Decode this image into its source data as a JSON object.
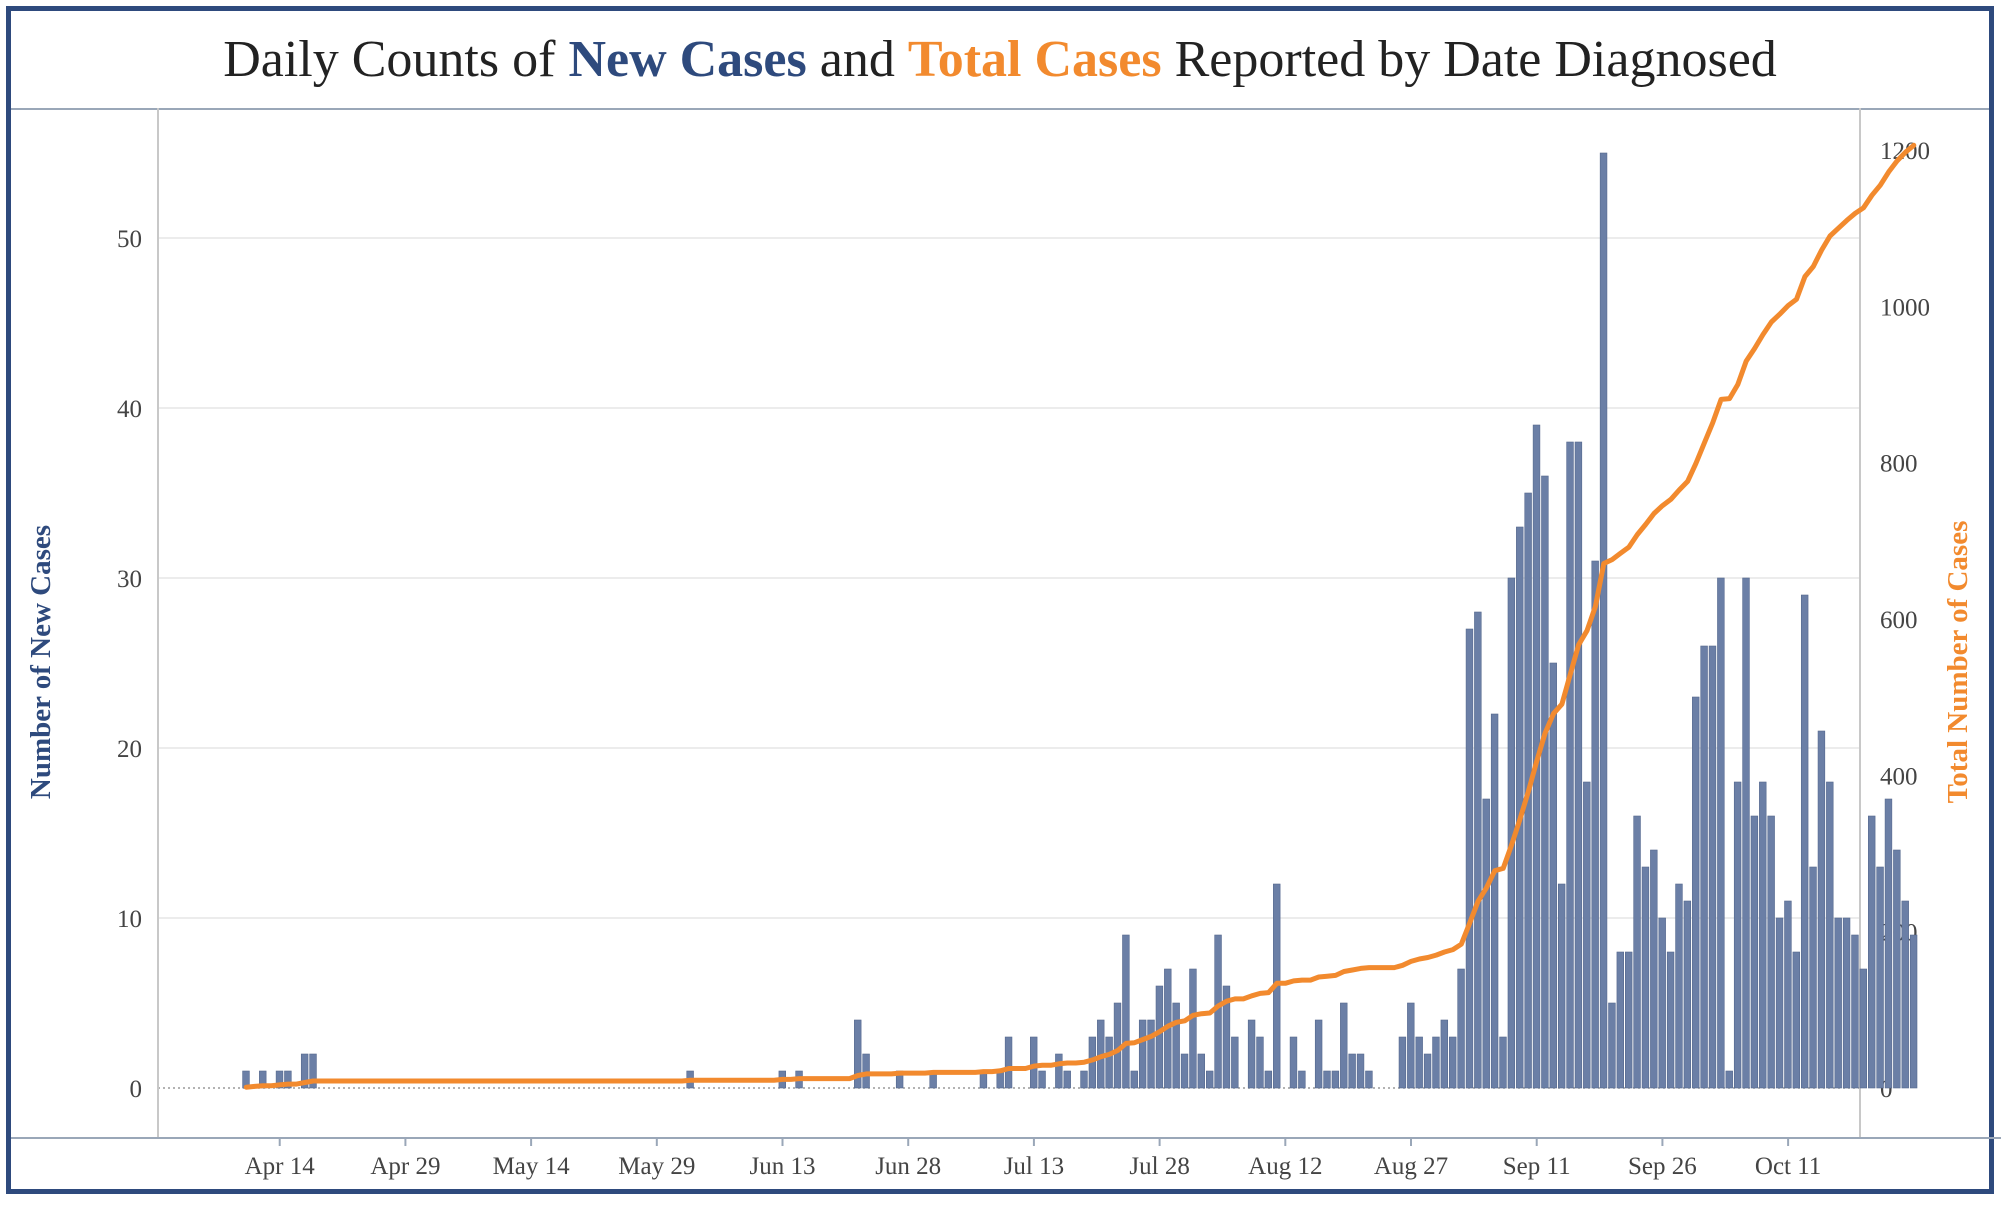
{
  "title": {
    "part1": "Daily Counts of ",
    "part2": "New Cases",
    "part3": " and ",
    "part4": "Total Cases",
    "part5": " Reported by Date Diagnosed"
  },
  "colors": {
    "new_cases": "#6b7fa6",
    "new_cases_title": "#2e4a7d",
    "total_cases": "#f28a2e",
    "frame": "#2e4a7d"
  },
  "chart_data": {
    "type": "bar+line",
    "x_start_date": "Apr 10",
    "x_tick_labels": [
      "Apr 14",
      "Apr 29",
      "May 14",
      "May 29",
      "Jun 13",
      "Jun 28",
      "Jul 13",
      "Jul 28",
      "Aug 12",
      "Aug 27",
      "Sep 11",
      "Sep 26",
      "Oct 11"
    ],
    "ylabel_left": "Number of New Cases",
    "ylabel_right": "Total Number of Cases",
    "ylim_left": [
      0,
      56
    ],
    "yticks_left": [
      0,
      10,
      20,
      30,
      40,
      50
    ],
    "ylim_right": [
      0,
      1220
    ],
    "yticks_right": [
      0,
      200,
      400,
      600,
      800,
      1000,
      1200
    ],
    "grid": true,
    "series": [
      {
        "name": "New Cases",
        "type": "bar",
        "values": [
          1,
          0,
          1,
          0,
          1,
          1,
          0,
          2,
          2,
          0,
          0,
          0,
          0,
          0,
          0,
          0,
          0,
          0,
          0,
          0,
          0,
          0,
          0,
          0,
          0,
          0,
          0,
          0,
          0,
          0,
          0,
          0,
          0,
          0,
          0,
          0,
          0,
          0,
          0,
          0,
          0,
          0,
          0,
          0,
          0,
          0,
          0,
          0,
          0,
          0,
          0,
          0,
          0,
          1,
          0,
          0,
          0,
          0,
          0,
          0,
          0,
          0,
          0,
          0,
          1,
          0,
          1,
          0,
          0,
          0,
          0,
          0,
          0,
          4,
          2,
          0,
          0,
          0,
          1,
          0,
          0,
          0,
          1,
          0,
          0,
          0,
          0,
          0,
          1,
          0,
          1,
          3,
          0,
          0,
          3,
          1,
          0,
          2,
          1,
          0,
          1,
          3,
          4,
          3,
          5,
          9,
          1,
          4,
          4,
          6,
          7,
          5,
          2,
          7,
          2,
          1,
          9,
          6,
          3,
          0,
          4,
          3,
          1,
          12,
          0,
          3,
          1,
          0,
          4,
          1,
          1,
          5,
          2,
          2,
          1,
          0,
          0,
          0,
          3,
          5,
          3,
          2,
          3,
          4,
          3,
          7,
          27,
          28,
          17,
          22,
          3,
          30,
          33,
          35,
          39,
          36,
          25,
          12,
          38,
          38,
          18,
          31,
          55,
          5,
          8,
          8,
          16,
          13,
          14,
          10,
          8,
          12,
          11,
          23,
          26,
          26,
          30,
          1,
          18,
          30,
          16,
          18,
          16,
          10,
          11,
          8,
          29,
          13,
          21,
          18,
          10,
          10,
          9,
          7,
          16,
          13,
          17,
          14,
          11,
          9
        ]
      },
      {
        "name": "Total Cases",
        "type": "line",
        "values": [
          1,
          2,
          3,
          3,
          4,
          5,
          5,
          7,
          9,
          9,
          9,
          9,
          9,
          9,
          9,
          9,
          9,
          9,
          9,
          9,
          9,
          9,
          9,
          9,
          9,
          9,
          9,
          9,
          9,
          9,
          9,
          9,
          9,
          9,
          9,
          9,
          9,
          9,
          9,
          9,
          9,
          9,
          9,
          9,
          9,
          9,
          9,
          9,
          9,
          9,
          9,
          9,
          9,
          10,
          10,
          10,
          10,
          10,
          10,
          10,
          10,
          10,
          10,
          10,
          11,
          11,
          12,
          12,
          12,
          12,
          12,
          12,
          12,
          16,
          18,
          18,
          18,
          18,
          19,
          19,
          19,
          19,
          20,
          20,
          20,
          20,
          20,
          20,
          21,
          21,
          22,
          25,
          25,
          25,
          28,
          29,
          29,
          31,
          32,
          32,
          33,
          36,
          40,
          43,
          48,
          57,
          58,
          62,
          66,
          72,
          79,
          84,
          86,
          93,
          95,
          96,
          105,
          111,
          114,
          114,
          118,
          121,
          122,
          134,
          134,
          137,
          138,
          138,
          142,
          143,
          144,
          149,
          151,
          153,
          154,
          154,
          154,
          154,
          157,
          162,
          165,
          167,
          170,
          174,
          177,
          184,
          211,
          239,
          256,
          278,
          281,
          311,
          344,
          379,
          418,
          454,
          479,
          491,
          529,
          567,
          585,
          616,
          671,
          676,
          684,
          692,
          708,
          721,
          735,
          745,
          753,
          765,
          776,
          799,
          825,
          851,
          881,
          882,
          900,
          930,
          946,
          964,
          980,
          990,
          1001,
          1009,
          1038,
          1051,
          1072,
          1090,
          1100,
          1110,
          1119,
          1126,
          1142,
          1155,
          1172,
          1186,
          1197,
          1206
        ]
      }
    ]
  }
}
